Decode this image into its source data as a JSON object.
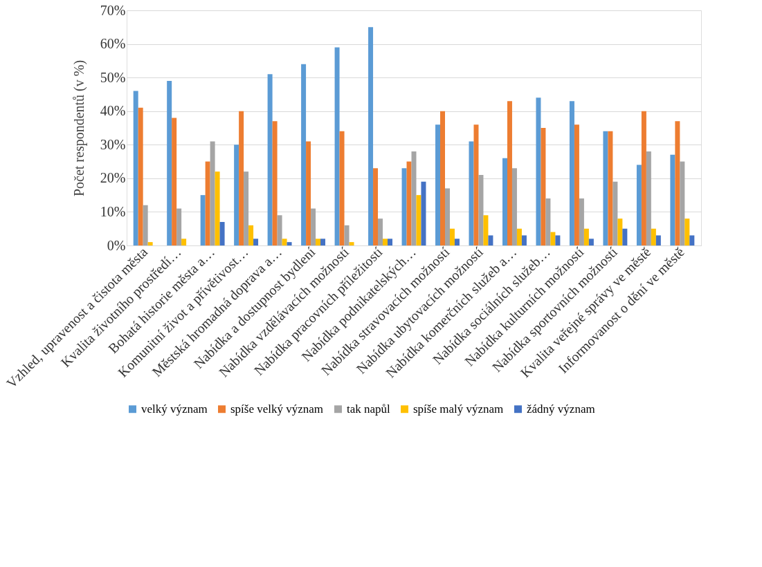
{
  "chart_data": {
    "type": "bar",
    "ylabel": "Počet respondentů (v %)",
    "categories": [
      "Vzhled, upravenost a čistota města",
      "Kvalita životního prostředí…",
      "Bohatá historie města a…",
      "Komunitní život a přívětivost…",
      "Městská hromadná doprava a…",
      "Nabídka a dostupnost bydlení",
      "Nabídka vzdělávacích možností",
      "Nabídka pracovních příležitostí",
      "Nabídka podnikatelských…",
      "Nabídka stravovacích možností",
      "Nabídka ubytovacích možností",
      "Nabídka komerčních služeb a…",
      "Nabídka sociálních služeb…",
      "Nabídka kulturních možností",
      "Nabídka sportovních možností",
      "Kvalita veřejné správy ve městě",
      "Informovanost o dění ve městě"
    ],
    "series": [
      {
        "name": "velký význam",
        "color": "#5b9bd5",
        "values": [
          46,
          49,
          15,
          30,
          51,
          54,
          59,
          65,
          23,
          36,
          31,
          26,
          44,
          43,
          34,
          24,
          27
        ]
      },
      {
        "name": "spíše velký význam",
        "color": "#ed7d31",
        "values": [
          41,
          38,
          25,
          40,
          37,
          31,
          34,
          23,
          25,
          40,
          36,
          43,
          35,
          36,
          34,
          40,
          37
        ]
      },
      {
        "name": "tak napůl",
        "color": "#a5a5a5",
        "values": [
          12,
          11,
          31,
          22,
          9,
          11,
          6,
          8,
          28,
          17,
          21,
          23,
          14,
          14,
          19,
          28,
          25
        ]
      },
      {
        "name": "spíše malý význam",
        "color": "#ffc000",
        "values": [
          1,
          2,
          22,
          6,
          2,
          2,
          1,
          2,
          15,
          5,
          9,
          5,
          4,
          5,
          8,
          5,
          8
        ]
      },
      {
        "name": "žádný význam",
        "color": "#4472c4",
        "values": [
          0,
          0,
          7,
          2,
          1,
          2,
          0,
          2,
          19,
          2,
          3,
          3,
          3,
          2,
          5,
          3,
          3
        ]
      }
    ],
    "ylim": [
      0,
      70
    ],
    "yticks": [
      {
        "value": 0,
        "label": "0%"
      },
      {
        "value": 10,
        "label": "10%"
      },
      {
        "value": 20,
        "label": "20%"
      },
      {
        "value": 30,
        "label": "30%"
      },
      {
        "value": 40,
        "label": "40%"
      },
      {
        "value": 50,
        "label": "50%"
      },
      {
        "value": 60,
        "label": "60%"
      },
      {
        "value": 70,
        "label": "70%"
      }
    ],
    "grid": "y",
    "legend": "bottom"
  }
}
